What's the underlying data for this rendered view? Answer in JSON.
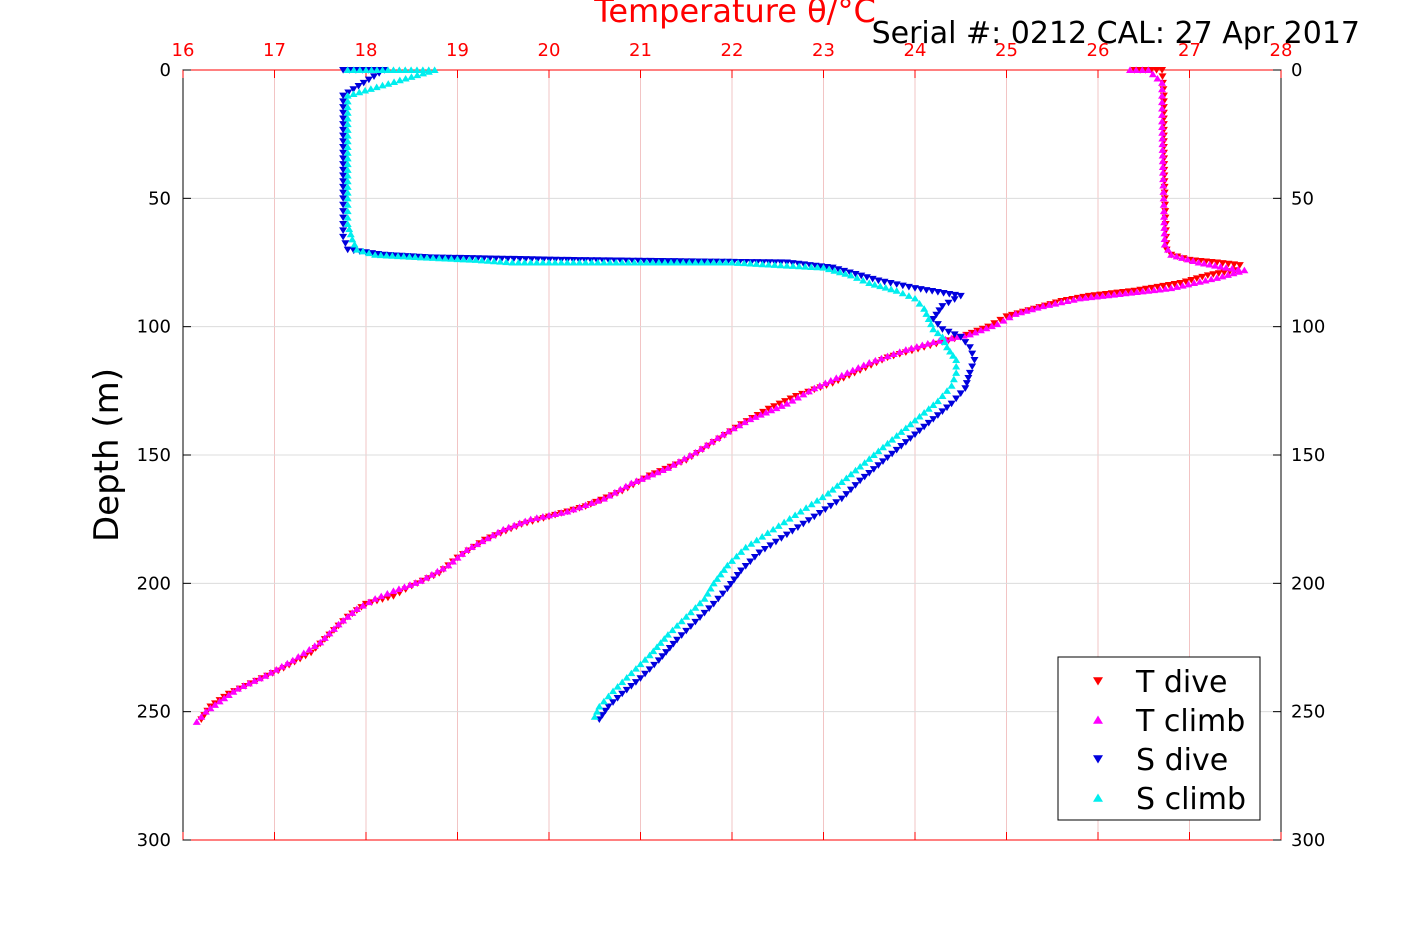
{
  "chart_data": {
    "type": "scatter",
    "title": "Temperature θ/°C",
    "serial_label": "Serial #: 0212  CAL: 27 Apr 2017",
    "ylabel": "Depth (m)",
    "xlim": [
      16,
      28
    ],
    "ylim": [
      0,
      300
    ],
    "y_reversed": true,
    "x_ticks": [
      16,
      17,
      18,
      19,
      20,
      21,
      22,
      23,
      24,
      25,
      26,
      27,
      28
    ],
    "y_ticks": [
      0,
      50,
      100,
      150,
      200,
      250,
      300
    ],
    "grid": true,
    "legend_position": "bottom-right",
    "colors": {
      "title": "#ff0000",
      "x_ticks": "#ff0000",
      "t_dive": "#ff0000",
      "t_climb": "#ff00ff",
      "s_dive": "#0000dd",
      "s_climb": "#00eeee"
    },
    "series": [
      {
        "name": "T dive",
        "marker": "triangle-down",
        "color": "#ff0000",
        "points": [
          [
            26.4,
            0
          ],
          [
            26.7,
            0
          ],
          [
            26.72,
            10
          ],
          [
            26.72,
            30
          ],
          [
            26.73,
            50
          ],
          [
            26.74,
            60
          ],
          [
            26.75,
            70
          ],
          [
            26.8,
            72
          ],
          [
            27.0,
            74
          ],
          [
            27.3,
            75
          ],
          [
            27.55,
            76
          ],
          [
            27.5,
            78
          ],
          [
            27.2,
            80
          ],
          [
            26.9,
            83
          ],
          [
            26.4,
            86
          ],
          [
            25.9,
            88
          ],
          [
            25.6,
            90
          ],
          [
            25.3,
            93
          ],
          [
            25.0,
            96
          ],
          [
            24.8,
            100
          ],
          [
            24.5,
            104
          ],
          [
            24.3,
            106
          ],
          [
            24.1,
            108
          ],
          [
            23.7,
            112
          ],
          [
            23.4,
            117
          ],
          [
            23.1,
            122
          ],
          [
            22.7,
            127
          ],
          [
            22.4,
            132
          ],
          [
            22.1,
            138
          ],
          [
            21.8,
            145
          ],
          [
            21.5,
            152
          ],
          [
            21.1,
            158
          ],
          [
            20.8,
            164
          ],
          [
            20.4,
            170
          ],
          [
            20.0,
            174
          ],
          [
            19.7,
            177
          ],
          [
            19.3,
            183
          ],
          [
            19.0,
            190
          ],
          [
            18.8,
            196
          ],
          [
            18.5,
            201
          ],
          [
            18.3,
            205
          ],
          [
            18.0,
            208
          ],
          [
            17.8,
            213
          ],
          [
            17.6,
            220
          ],
          [
            17.4,
            227
          ],
          [
            17.1,
            233
          ],
          [
            16.8,
            238
          ],
          [
            16.5,
            243
          ],
          [
            16.3,
            248
          ],
          [
            16.2,
            253
          ]
        ]
      },
      {
        "name": "T climb",
        "marker": "triangle-up",
        "color": "#ff00ff",
        "points": [
          [
            26.35,
            0
          ],
          [
            26.55,
            0
          ],
          [
            26.7,
            5
          ],
          [
            26.7,
            20
          ],
          [
            26.71,
            40
          ],
          [
            26.72,
            55
          ],
          [
            26.73,
            68
          ],
          [
            26.8,
            72
          ],
          [
            27.1,
            75
          ],
          [
            27.4,
            77
          ],
          [
            27.6,
            78
          ],
          [
            27.3,
            81
          ],
          [
            26.8,
            85
          ],
          [
            26.3,
            87
          ],
          [
            25.8,
            89
          ],
          [
            25.4,
            92
          ],
          [
            25.1,
            95
          ],
          [
            24.9,
            99
          ],
          [
            24.6,
            103
          ],
          [
            24.2,
            106
          ],
          [
            23.9,
            109
          ],
          [
            23.5,
            114
          ],
          [
            23.2,
            119
          ],
          [
            22.9,
            124
          ],
          [
            22.6,
            130
          ],
          [
            22.2,
            136
          ],
          [
            21.9,
            142
          ],
          [
            21.6,
            149
          ],
          [
            21.3,
            155
          ],
          [
            20.9,
            161
          ],
          [
            20.6,
            167
          ],
          [
            20.2,
            172
          ],
          [
            19.8,
            175
          ],
          [
            19.5,
            179
          ],
          [
            19.1,
            187
          ],
          [
            18.9,
            193
          ],
          [
            18.6,
            199
          ],
          [
            18.3,
            203
          ],
          [
            18.1,
            206
          ],
          [
            17.9,
            210
          ],
          [
            17.7,
            216
          ],
          [
            17.5,
            223
          ],
          [
            17.2,
            230
          ],
          [
            16.9,
            236
          ],
          [
            16.6,
            241
          ],
          [
            16.4,
            246
          ],
          [
            16.25,
            250
          ],
          [
            16.15,
            254
          ]
        ]
      },
      {
        "name": "S dive",
        "marker": "triangle-down",
        "color": "#0000dd",
        "points": [
          [
            17.75,
            0
          ],
          [
            18.1,
            0
          ],
          [
            18.2,
            0
          ],
          [
            17.75,
            10
          ],
          [
            17.75,
            30
          ],
          [
            17.75,
            50
          ],
          [
            17.75,
            60
          ],
          [
            17.75,
            65
          ],
          [
            17.8,
            70
          ],
          [
            18.2,
            72
          ],
          [
            18.7,
            73
          ],
          [
            20.2,
            74
          ],
          [
            22.6,
            75
          ],
          [
            23.1,
            77
          ],
          [
            23.6,
            82
          ],
          [
            24.0,
            85
          ],
          [
            24.5,
            88
          ],
          [
            24.3,
            92
          ],
          [
            24.2,
            97
          ],
          [
            24.3,
            101
          ],
          [
            24.5,
            104
          ],
          [
            24.6,
            108
          ],
          [
            24.65,
            113
          ],
          [
            24.6,
            118
          ],
          [
            24.55,
            124
          ],
          [
            24.4,
            130
          ],
          [
            24.2,
            136
          ],
          [
            24.0,
            142
          ],
          [
            23.8,
            148
          ],
          [
            23.6,
            154
          ],
          [
            23.4,
            160
          ],
          [
            23.2,
            167
          ],
          [
            22.9,
            174
          ],
          [
            22.6,
            181
          ],
          [
            22.3,
            188
          ],
          [
            22.1,
            195
          ],
          [
            21.95,
            202
          ],
          [
            21.8,
            208
          ],
          [
            21.6,
            215
          ],
          [
            21.4,
            222
          ],
          [
            21.2,
            230
          ],
          [
            21.0,
            237
          ],
          [
            20.8,
            243
          ],
          [
            20.65,
            248
          ],
          [
            20.55,
            253
          ]
        ]
      },
      {
        "name": "S climb",
        "marker": "triangle-up",
        "color": "#00eeee",
        "points": [
          [
            17.8,
            0
          ],
          [
            18.0,
            0
          ],
          [
            18.3,
            0
          ],
          [
            18.75,
            0
          ],
          [
            17.8,
            10
          ],
          [
            17.8,
            30
          ],
          [
            17.8,
            50
          ],
          [
            17.8,
            60
          ],
          [
            17.85,
            66
          ],
          [
            17.9,
            70
          ],
          [
            18.1,
            72
          ],
          [
            18.6,
            73
          ],
          [
            19.2,
            74
          ],
          [
            19.6,
            75
          ],
          [
            21.2,
            75
          ],
          [
            22.0,
            75
          ],
          [
            23.0,
            77
          ],
          [
            23.3,
            80
          ],
          [
            23.5,
            83
          ],
          [
            23.8,
            86
          ],
          [
            24.0,
            89
          ],
          [
            24.1,
            93
          ],
          [
            24.15,
            97
          ],
          [
            24.2,
            101
          ],
          [
            24.3,
            104
          ],
          [
            24.35,
            108
          ],
          [
            24.45,
            113
          ],
          [
            24.45,
            118
          ],
          [
            24.4,
            123
          ],
          [
            24.25,
            129
          ],
          [
            24.05,
            135
          ],
          [
            23.85,
            141
          ],
          [
            23.65,
            147
          ],
          [
            23.45,
            153
          ],
          [
            23.25,
            159
          ],
          [
            23.05,
            165
          ],
          [
            22.75,
            172
          ],
          [
            22.45,
            179
          ],
          [
            22.15,
            186
          ],
          [
            21.95,
            193
          ],
          [
            21.8,
            200
          ],
          [
            21.7,
            206
          ],
          [
            21.5,
            213
          ],
          [
            21.3,
            220
          ],
          [
            21.1,
            228
          ],
          [
            20.9,
            235
          ],
          [
            20.7,
            242
          ],
          [
            20.55,
            248
          ],
          [
            20.5,
            252
          ]
        ]
      }
    ]
  }
}
